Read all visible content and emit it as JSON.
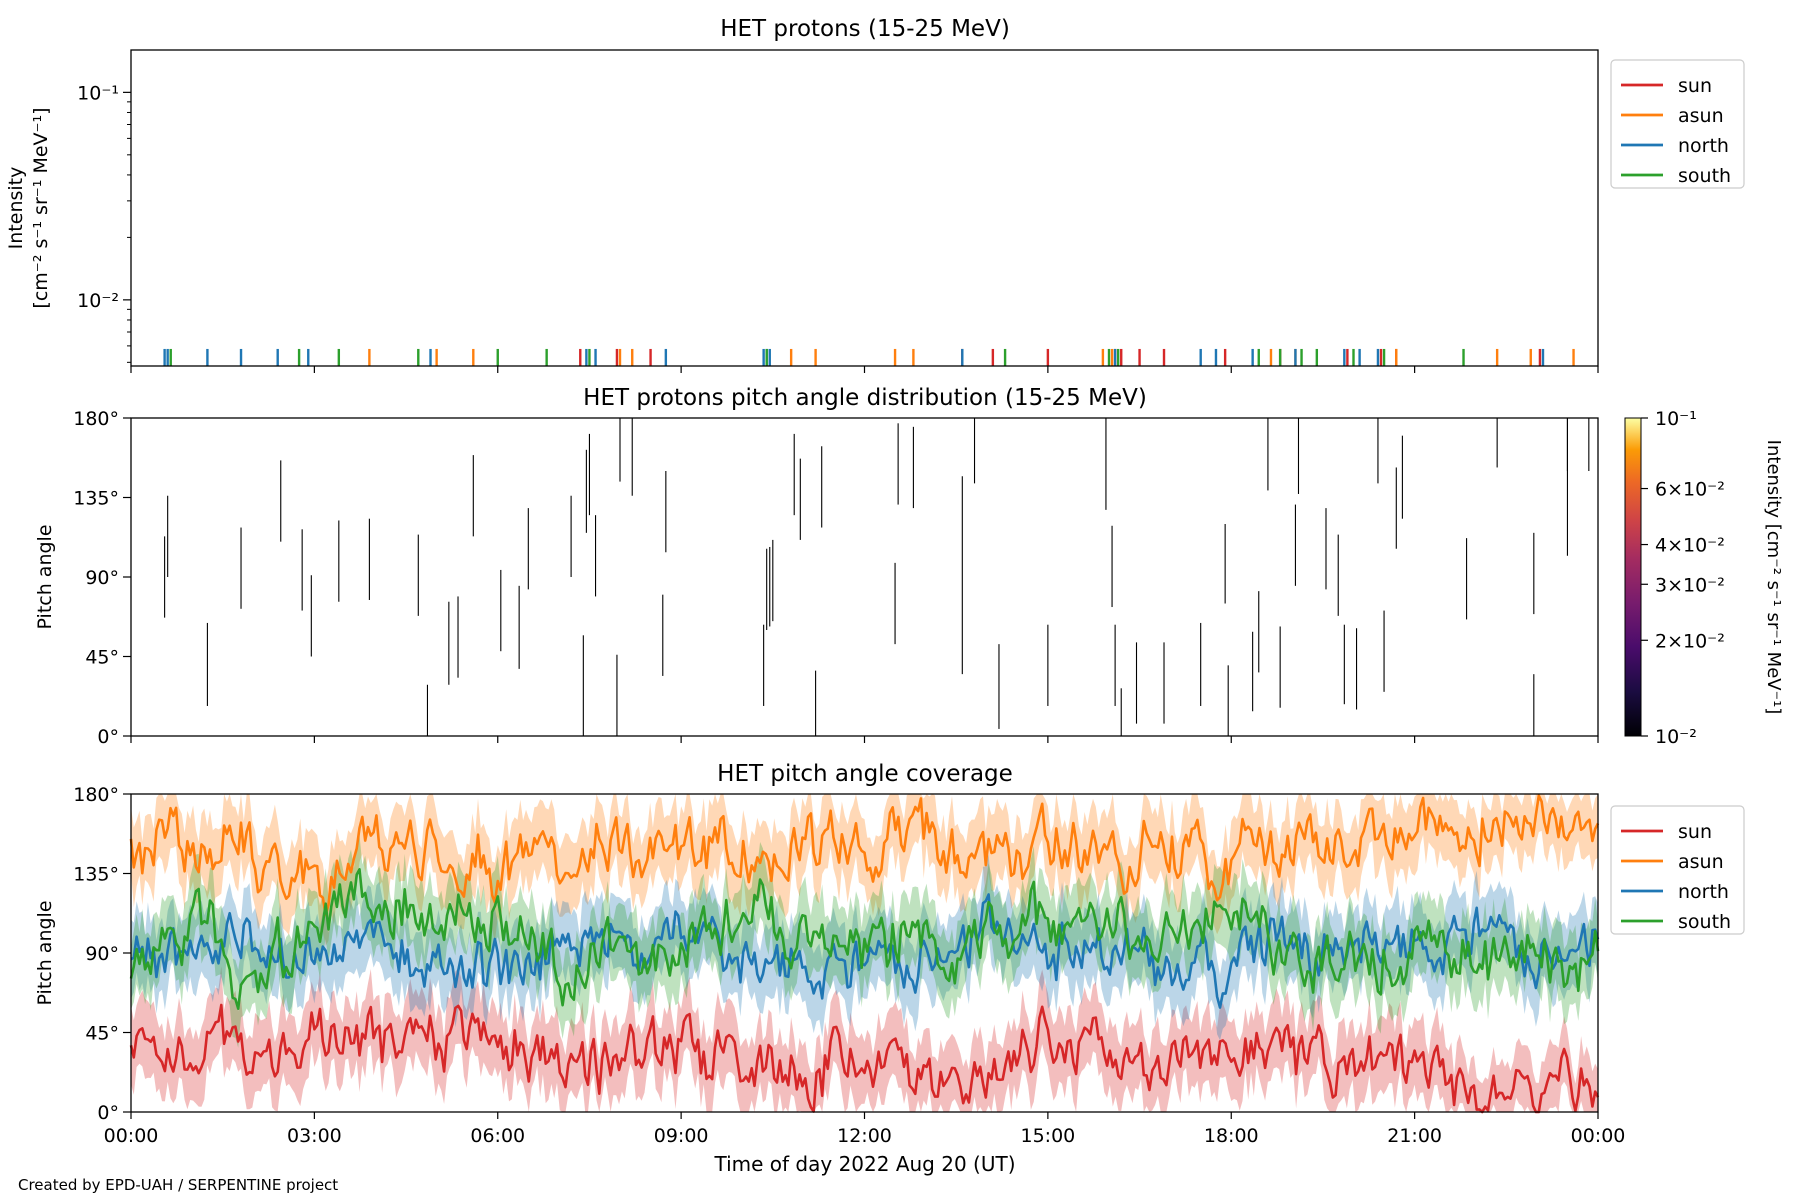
{
  "credit": "Created by EPD-UAH / SERPENTINE project",
  "x_axis": {
    "label": "Time of day 2022 Aug 20 (UT)",
    "ticks": [
      "00:00",
      "03:00",
      "06:00",
      "09:00",
      "12:00",
      "15:00",
      "18:00",
      "21:00",
      "00:00"
    ],
    "range_hours": [
      0,
      24
    ]
  },
  "series_colors": {
    "sun": "#d62728",
    "asun": "#ff7f0e",
    "north": "#1f77b4",
    "south": "#2ca02c"
  },
  "chart_data": [
    {
      "type": "line",
      "title": "HET protons (15-25 MeV)",
      "ylabel_lines": [
        "Intensity",
        "[cm⁻² s⁻¹ sr⁻¹ MeV⁻¹]"
      ],
      "yscale": "log",
      "ylim": [
        0.0048,
        0.16
      ],
      "ytick_labels": [
        "10⁻¹",
        "10⁻²"
      ],
      "ytick_values": [
        0.1,
        0.01
      ],
      "legend": {
        "position": "outside-right-top",
        "entries": [
          "sun",
          "asun",
          "north",
          "south"
        ]
      },
      "spike_height": 0.0058,
      "series": [
        {
          "name": "sun",
          "x": [
            7.35,
            7.95,
            8.5,
            13.6,
            14.1,
            15.0,
            16.1,
            16.2,
            16.5,
            16.9,
            17.9,
            18.8,
            19.9,
            20.45,
            20.7,
            23.05
          ]
        },
        {
          "name": "asun",
          "x": [
            3.9,
            5.0,
            5.6,
            8.0,
            8.2,
            10.8,
            11.2,
            12.5,
            12.8,
            15.9,
            16.05,
            18.65,
            19.05,
            20.7,
            22.35,
            22.9,
            23.6
          ]
        },
        {
          "name": "north",
          "x": [
            0.55,
            0.6,
            1.25,
            1.8,
            2.4,
            2.9,
            4.9,
            7.45,
            7.6,
            8.75,
            10.35,
            10.4,
            10.45,
            13.6,
            16.1,
            17.5,
            17.75,
            18.35,
            19.05,
            19.85,
            20.1,
            20.4,
            23.1
          ]
        },
        {
          "name": "south",
          "x": [
            0.65,
            2.75,
            3.4,
            4.7,
            6.0,
            6.8,
            7.5,
            10.4,
            14.3,
            16.0,
            16.15,
            18.45,
            18.8,
            19.15,
            19.4,
            20.0,
            20.5,
            21.8
          ]
        }
      ]
    },
    {
      "type": "heatmap",
      "title": "HET protons pitch angle distribution (15-25 MeV)",
      "ylabel": "Pitch angle",
      "ylim": [
        0,
        180
      ],
      "ytick_labels": [
        "0°",
        "45°",
        "90°",
        "135°",
        "180°"
      ],
      "ytick_values": [
        0,
        45,
        90,
        135,
        180
      ],
      "colorbar": {
        "label": "Intensity [cm⁻² s⁻¹ sr⁻¹ MeV⁻¹]",
        "scale": "log",
        "range": [
          0.01,
          0.1
        ],
        "colormap": "inferno",
        "tick_labels": [
          "10⁻¹",
          "6×10⁻²",
          "4×10⁻²",
          "3×10⁻²",
          "2×10⁻²",
          "10⁻²"
        ],
        "tick_values": [
          0.1,
          0.06,
          0.04,
          0.03,
          0.02,
          0.01
        ]
      },
      "segments": [
        [
          0.55,
          67,
          113
        ],
        [
          0.6,
          90,
          136
        ],
        [
          1.25,
          17,
          64
        ],
        [
          1.8,
          72,
          118
        ],
        [
          2.45,
          110,
          156
        ],
        [
          2.8,
          71,
          117
        ],
        [
          2.95,
          45,
          91
        ],
        [
          3.4,
          76,
          122
        ],
        [
          3.9,
          77,
          123
        ],
        [
          4.7,
          68,
          114
        ],
        [
          4.85,
          0,
          29
        ],
        [
          5.2,
          29,
          76
        ],
        [
          5.35,
          33,
          79
        ],
        [
          5.6,
          113,
          159
        ],
        [
          6.05,
          48,
          94
        ],
        [
          6.35,
          38,
          85
        ],
        [
          6.5,
          83,
          129
        ],
        [
          7.2,
          90,
          136
        ],
        [
          7.4,
          0,
          57
        ],
        [
          7.45,
          115,
          162
        ],
        [
          7.5,
          125,
          171
        ],
        [
          7.6,
          79,
          125
        ],
        [
          7.95,
          0,
          46
        ],
        [
          8.0,
          144,
          180
        ],
        [
          8.2,
          136,
          180
        ],
        [
          8.7,
          34,
          80
        ],
        [
          8.75,
          104,
          150
        ],
        [
          10.35,
          17,
          63
        ],
        [
          10.4,
          60,
          106
        ],
        [
          10.45,
          62,
          107
        ],
        [
          10.5,
          65,
          111
        ],
        [
          10.85,
          125,
          171
        ],
        [
          10.95,
          111,
          157
        ],
        [
          11.2,
          0,
          37
        ],
        [
          11.3,
          118,
          164
        ],
        [
          12.5,
          52,
          98
        ],
        [
          12.55,
          131,
          177
        ],
        [
          12.8,
          129,
          175
        ],
        [
          13.6,
          35,
          147
        ],
        [
          13.8,
          143,
          180
        ],
        [
          14.2,
          4,
          52
        ],
        [
          15.0,
          17,
          63
        ],
        [
          15.95,
          128,
          180
        ],
        [
          16.05,
          73,
          119
        ],
        [
          16.1,
          17,
          63
        ],
        [
          16.2,
          0,
          27
        ],
        [
          16.45,
          7,
          53
        ],
        [
          16.9,
          7,
          53
        ],
        [
          17.5,
          17,
          64
        ],
        [
          17.9,
          75,
          120
        ],
        [
          17.95,
          0,
          40
        ],
        [
          18.35,
          14,
          59
        ],
        [
          18.45,
          36,
          82
        ],
        [
          18.6,
          139,
          180
        ],
        [
          18.8,
          16,
          62
        ],
        [
          19.05,
          85,
          131
        ],
        [
          19.1,
          137,
          180
        ],
        [
          19.55,
          83,
          129
        ],
        [
          19.75,
          68,
          114
        ],
        [
          19.85,
          18,
          63
        ],
        [
          20.05,
          15,
          61
        ],
        [
          20.4,
          143,
          180
        ],
        [
          20.5,
          25,
          71
        ],
        [
          20.7,
          106,
          152
        ],
        [
          20.8,
          123,
          170
        ],
        [
          21.85,
          66,
          112
        ],
        [
          22.35,
          152,
          180
        ],
        [
          22.95,
          0,
          35
        ],
        [
          22.95,
          69,
          115
        ],
        [
          23.5,
          150,
          180
        ],
        [
          23.5,
          102,
          180
        ],
        [
          23.85,
          150,
          180
        ]
      ]
    },
    {
      "type": "area",
      "title": "HET pitch angle coverage",
      "ylabel": "Pitch angle",
      "ylim": [
        0,
        180
      ],
      "ytick_labels": [
        "0°",
        "45°",
        "90°",
        "135°",
        "180°"
      ],
      "ytick_values": [
        0,
        45,
        90,
        135,
        180
      ],
      "legend": {
        "position": "outside-right-top",
        "entries": [
          "sun",
          "asun",
          "north",
          "south"
        ]
      },
      "x": [
        0,
        1,
        2,
        3,
        4,
        5,
        6,
        7,
        8,
        9,
        10,
        11,
        12,
        13,
        14,
        15,
        16,
        17,
        18,
        19,
        20,
        21,
        22,
        23,
        24
      ],
      "series": [
        {
          "name": "sun",
          "y": [
            35,
            45,
            30,
            50,
            30,
            35,
            45,
            25,
            30,
            40,
            35,
            30,
            35,
            25,
            20,
            30,
            35,
            30,
            35,
            25,
            20,
            25,
            15,
            10,
            20
          ],
          "band": [
            20,
            20,
            20,
            20,
            20,
            20,
            20,
            20,
            20,
            20,
            20,
            20,
            20,
            20,
            20,
            20,
            20,
            20,
            20,
            20,
            20,
            20,
            18,
            18,
            18
          ]
        },
        {
          "name": "asun",
          "y": [
            145,
            150,
            145,
            130,
            150,
            150,
            140,
            155,
            150,
            140,
            150,
            155,
            145,
            155,
            150,
            150,
            145,
            150,
            145,
            155,
            155,
            160,
            165,
            170,
            160
          ],
          "band": [
            20,
            20,
            20,
            20,
            20,
            20,
            20,
            20,
            20,
            20,
            20,
            20,
            20,
            20,
            20,
            20,
            20,
            20,
            20,
            20,
            20,
            20,
            18,
            18,
            18
          ]
        },
        {
          "name": "north",
          "y": [
            95,
            80,
            100,
            95,
            85,
            75,
            80,
            95,
            90,
            90,
            75,
            80,
            75,
            90,
            95,
            85,
            90,
            80,
            70,
            95,
            85,
            90,
            95,
            90,
            95
          ],
          "band": [
            20,
            20,
            20,
            20,
            20,
            20,
            20,
            20,
            20,
            20,
            20,
            20,
            20,
            20,
            20,
            20,
            20,
            20,
            20,
            20,
            20,
            20,
            20,
            20,
            20
          ]
        },
        {
          "name": "south",
          "y": [
            85,
            110,
            75,
            100,
            115,
            110,
            110,
            80,
            95,
            85,
            110,
            100,
            95,
            95,
            100,
            100,
            100,
            105,
            110,
            80,
            95,
            85,
            85,
            90,
            85
          ],
          "band": [
            20,
            20,
            20,
            20,
            20,
            20,
            20,
            20,
            20,
            20,
            20,
            20,
            20,
            20,
            20,
            20,
            20,
            20,
            20,
            20,
            20,
            20,
            20,
            20,
            20
          ]
        }
      ]
    }
  ]
}
